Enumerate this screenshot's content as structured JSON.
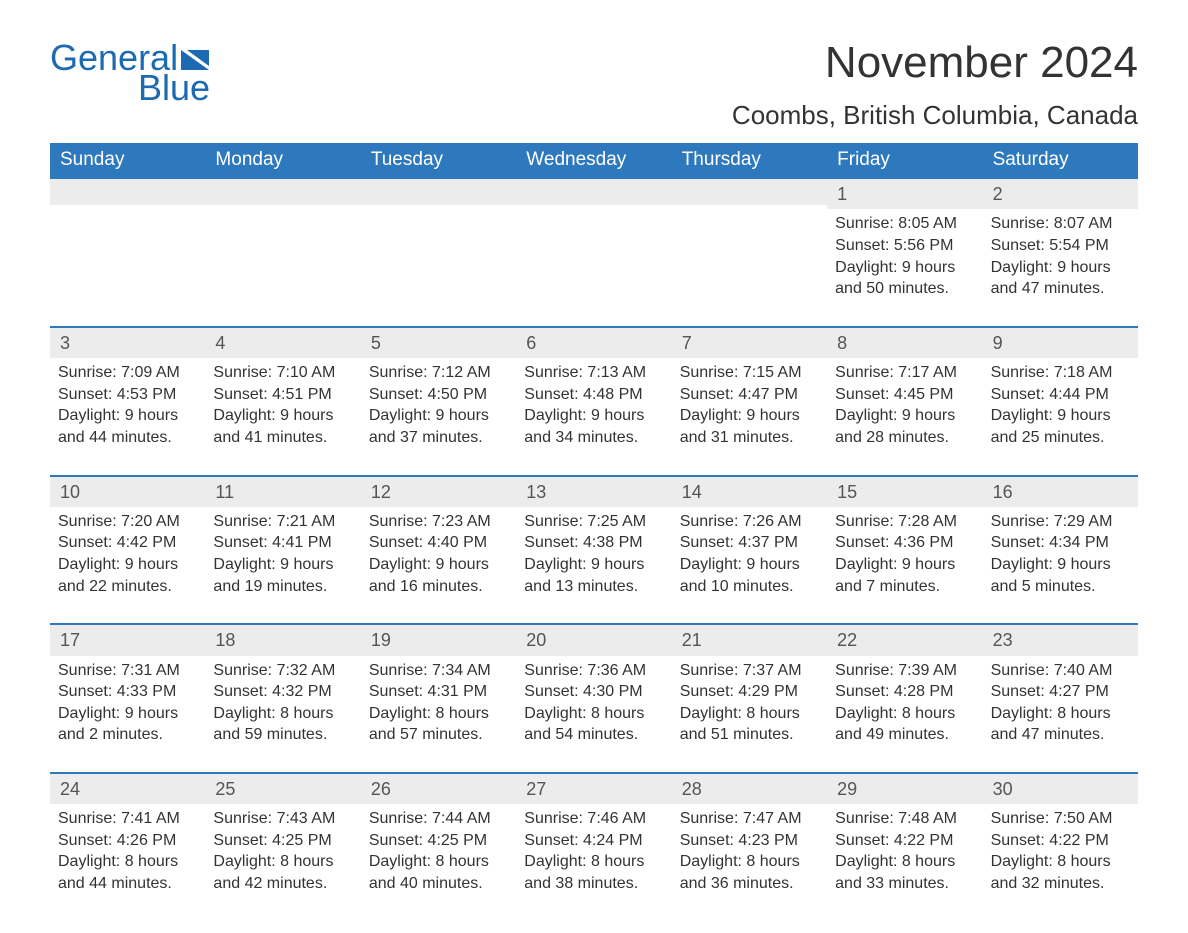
{
  "brand": {
    "name_part1": "General",
    "name_part2": "Blue",
    "color": "#1b6ab2"
  },
  "header": {
    "month_title": "November 2024",
    "location": "Coombs, British Columbia, Canada"
  },
  "calendar": {
    "type": "table",
    "columns": [
      "Sunday",
      "Monday",
      "Tuesday",
      "Wednesday",
      "Thursday",
      "Friday",
      "Saturday"
    ],
    "header_bg": "#2e78bd",
    "header_fg": "#ffffff",
    "row_accent": "#2e78bd",
    "daynum_bg": "#ececec",
    "text_color": "#333333",
    "background_color": "#ffffff",
    "font_family": "Arial",
    "cell_fontsize": 16,
    "header_fontsize": 19,
    "weeks": [
      [
        null,
        null,
        null,
        null,
        null,
        {
          "day": "1",
          "sunrise": "8:05 AM",
          "sunset": "5:56 PM",
          "daylight": "9 hours and 50 minutes."
        },
        {
          "day": "2",
          "sunrise": "8:07 AM",
          "sunset": "5:54 PM",
          "daylight": "9 hours and 47 minutes."
        }
      ],
      [
        {
          "day": "3",
          "sunrise": "7:09 AM",
          "sunset": "4:53 PM",
          "daylight": "9 hours and 44 minutes."
        },
        {
          "day": "4",
          "sunrise": "7:10 AM",
          "sunset": "4:51 PM",
          "daylight": "9 hours and 41 minutes."
        },
        {
          "day": "5",
          "sunrise": "7:12 AM",
          "sunset": "4:50 PM",
          "daylight": "9 hours and 37 minutes."
        },
        {
          "day": "6",
          "sunrise": "7:13 AM",
          "sunset": "4:48 PM",
          "daylight": "9 hours and 34 minutes."
        },
        {
          "day": "7",
          "sunrise": "7:15 AM",
          "sunset": "4:47 PM",
          "daylight": "9 hours and 31 minutes."
        },
        {
          "day": "8",
          "sunrise": "7:17 AM",
          "sunset": "4:45 PM",
          "daylight": "9 hours and 28 minutes."
        },
        {
          "day": "9",
          "sunrise": "7:18 AM",
          "sunset": "4:44 PM",
          "daylight": "9 hours and 25 minutes."
        }
      ],
      [
        {
          "day": "10",
          "sunrise": "7:20 AM",
          "sunset": "4:42 PM",
          "daylight": "9 hours and 22 minutes."
        },
        {
          "day": "11",
          "sunrise": "7:21 AM",
          "sunset": "4:41 PM",
          "daylight": "9 hours and 19 minutes."
        },
        {
          "day": "12",
          "sunrise": "7:23 AM",
          "sunset": "4:40 PM",
          "daylight": "9 hours and 16 minutes."
        },
        {
          "day": "13",
          "sunrise": "7:25 AM",
          "sunset": "4:38 PM",
          "daylight": "9 hours and 13 minutes."
        },
        {
          "day": "14",
          "sunrise": "7:26 AM",
          "sunset": "4:37 PM",
          "daylight": "9 hours and 10 minutes."
        },
        {
          "day": "15",
          "sunrise": "7:28 AM",
          "sunset": "4:36 PM",
          "daylight": "9 hours and 7 minutes."
        },
        {
          "day": "16",
          "sunrise": "7:29 AM",
          "sunset": "4:34 PM",
          "daylight": "9 hours and 5 minutes."
        }
      ],
      [
        {
          "day": "17",
          "sunrise": "7:31 AM",
          "sunset": "4:33 PM",
          "daylight": "9 hours and 2 minutes."
        },
        {
          "day": "18",
          "sunrise": "7:32 AM",
          "sunset": "4:32 PM",
          "daylight": "8 hours and 59 minutes."
        },
        {
          "day": "19",
          "sunrise": "7:34 AM",
          "sunset": "4:31 PM",
          "daylight": "8 hours and 57 minutes."
        },
        {
          "day": "20",
          "sunrise": "7:36 AM",
          "sunset": "4:30 PM",
          "daylight": "8 hours and 54 minutes."
        },
        {
          "day": "21",
          "sunrise": "7:37 AM",
          "sunset": "4:29 PM",
          "daylight": "8 hours and 51 minutes."
        },
        {
          "day": "22",
          "sunrise": "7:39 AM",
          "sunset": "4:28 PM",
          "daylight": "8 hours and 49 minutes."
        },
        {
          "day": "23",
          "sunrise": "7:40 AM",
          "sunset": "4:27 PM",
          "daylight": "8 hours and 47 minutes."
        }
      ],
      [
        {
          "day": "24",
          "sunrise": "7:41 AM",
          "sunset": "4:26 PM",
          "daylight": "8 hours and 44 minutes."
        },
        {
          "day": "25",
          "sunrise": "7:43 AM",
          "sunset": "4:25 PM",
          "daylight": "8 hours and 42 minutes."
        },
        {
          "day": "26",
          "sunrise": "7:44 AM",
          "sunset": "4:25 PM",
          "daylight": "8 hours and 40 minutes."
        },
        {
          "day": "27",
          "sunrise": "7:46 AM",
          "sunset": "4:24 PM",
          "daylight": "8 hours and 38 minutes."
        },
        {
          "day": "28",
          "sunrise": "7:47 AM",
          "sunset": "4:23 PM",
          "daylight": "8 hours and 36 minutes."
        },
        {
          "day": "29",
          "sunrise": "7:48 AM",
          "sunset": "4:22 PM",
          "daylight": "8 hours and 33 minutes."
        },
        {
          "day": "30",
          "sunrise": "7:50 AM",
          "sunset": "4:22 PM",
          "daylight": "8 hours and 32 minutes."
        }
      ]
    ],
    "labels": {
      "sunrise_prefix": "Sunrise: ",
      "sunset_prefix": "Sunset: ",
      "daylight_prefix": "Daylight: "
    }
  }
}
